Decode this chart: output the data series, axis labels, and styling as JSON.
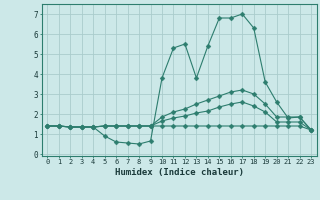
{
  "title": "",
  "xlabel": "Humidex (Indice chaleur)",
  "xlim": [
    -0.5,
    23.5
  ],
  "ylim": [
    -0.1,
    7.5
  ],
  "xticks": [
    0,
    1,
    2,
    3,
    4,
    5,
    6,
    7,
    8,
    9,
    10,
    11,
    12,
    13,
    14,
    15,
    16,
    17,
    18,
    19,
    20,
    21,
    22,
    23
  ],
  "yticks": [
    0,
    1,
    2,
    3,
    4,
    5,
    6,
    7
  ],
  "bg_color": "#cce8e8",
  "line_color": "#2d7d6e",
  "grid_color": "#aacccc",
  "lines": [
    {
      "x": [
        0,
        1,
        2,
        3,
        4,
        5,
        6,
        7,
        8,
        9,
        10,
        11,
        12,
        13,
        14,
        15,
        16,
        17,
        18,
        19,
        20,
        21,
        22,
        23
      ],
      "y": [
        1.4,
        1.4,
        1.35,
        1.35,
        1.35,
        0.9,
        0.6,
        0.55,
        0.5,
        0.65,
        3.8,
        5.3,
        5.5,
        3.8,
        5.4,
        6.8,
        6.8,
        7.0,
        6.3,
        3.6,
        2.6,
        1.8,
        1.85,
        1.2
      ]
    },
    {
      "x": [
        0,
        1,
        2,
        3,
        4,
        5,
        6,
        7,
        8,
        9,
        10,
        11,
        12,
        13,
        14,
        15,
        16,
        17,
        18,
        19,
        20,
        21,
        22,
        23
      ],
      "y": [
        1.4,
        1.4,
        1.35,
        1.35,
        1.35,
        1.4,
        1.4,
        1.4,
        1.4,
        1.4,
        1.85,
        2.1,
        2.25,
        2.5,
        2.7,
        2.9,
        3.1,
        3.2,
        3.0,
        2.5,
        1.85,
        1.85,
        1.85,
        1.2
      ]
    },
    {
      "x": [
        0,
        1,
        2,
        3,
        4,
        5,
        6,
        7,
        8,
        9,
        10,
        11,
        12,
        13,
        14,
        15,
        16,
        17,
        18,
        19,
        20,
        21,
        22,
        23
      ],
      "y": [
        1.4,
        1.4,
        1.35,
        1.35,
        1.35,
        1.4,
        1.4,
        1.4,
        1.4,
        1.4,
        1.65,
        1.8,
        1.9,
        2.05,
        2.15,
        2.35,
        2.5,
        2.6,
        2.4,
        2.1,
        1.6,
        1.6,
        1.6,
        1.2
      ]
    },
    {
      "x": [
        0,
        1,
        2,
        3,
        4,
        5,
        6,
        7,
        8,
        9,
        10,
        11,
        12,
        13,
        14,
        15,
        16,
        17,
        18,
        19,
        20,
        21,
        22,
        23
      ],
      "y": [
        1.4,
        1.4,
        1.35,
        1.35,
        1.35,
        1.4,
        1.4,
        1.4,
        1.4,
        1.4,
        1.4,
        1.4,
        1.4,
        1.4,
        1.4,
        1.4,
        1.4,
        1.4,
        1.4,
        1.4,
        1.4,
        1.4,
        1.4,
        1.2
      ]
    }
  ],
  "marker": "D",
  "markersize": 2.5
}
